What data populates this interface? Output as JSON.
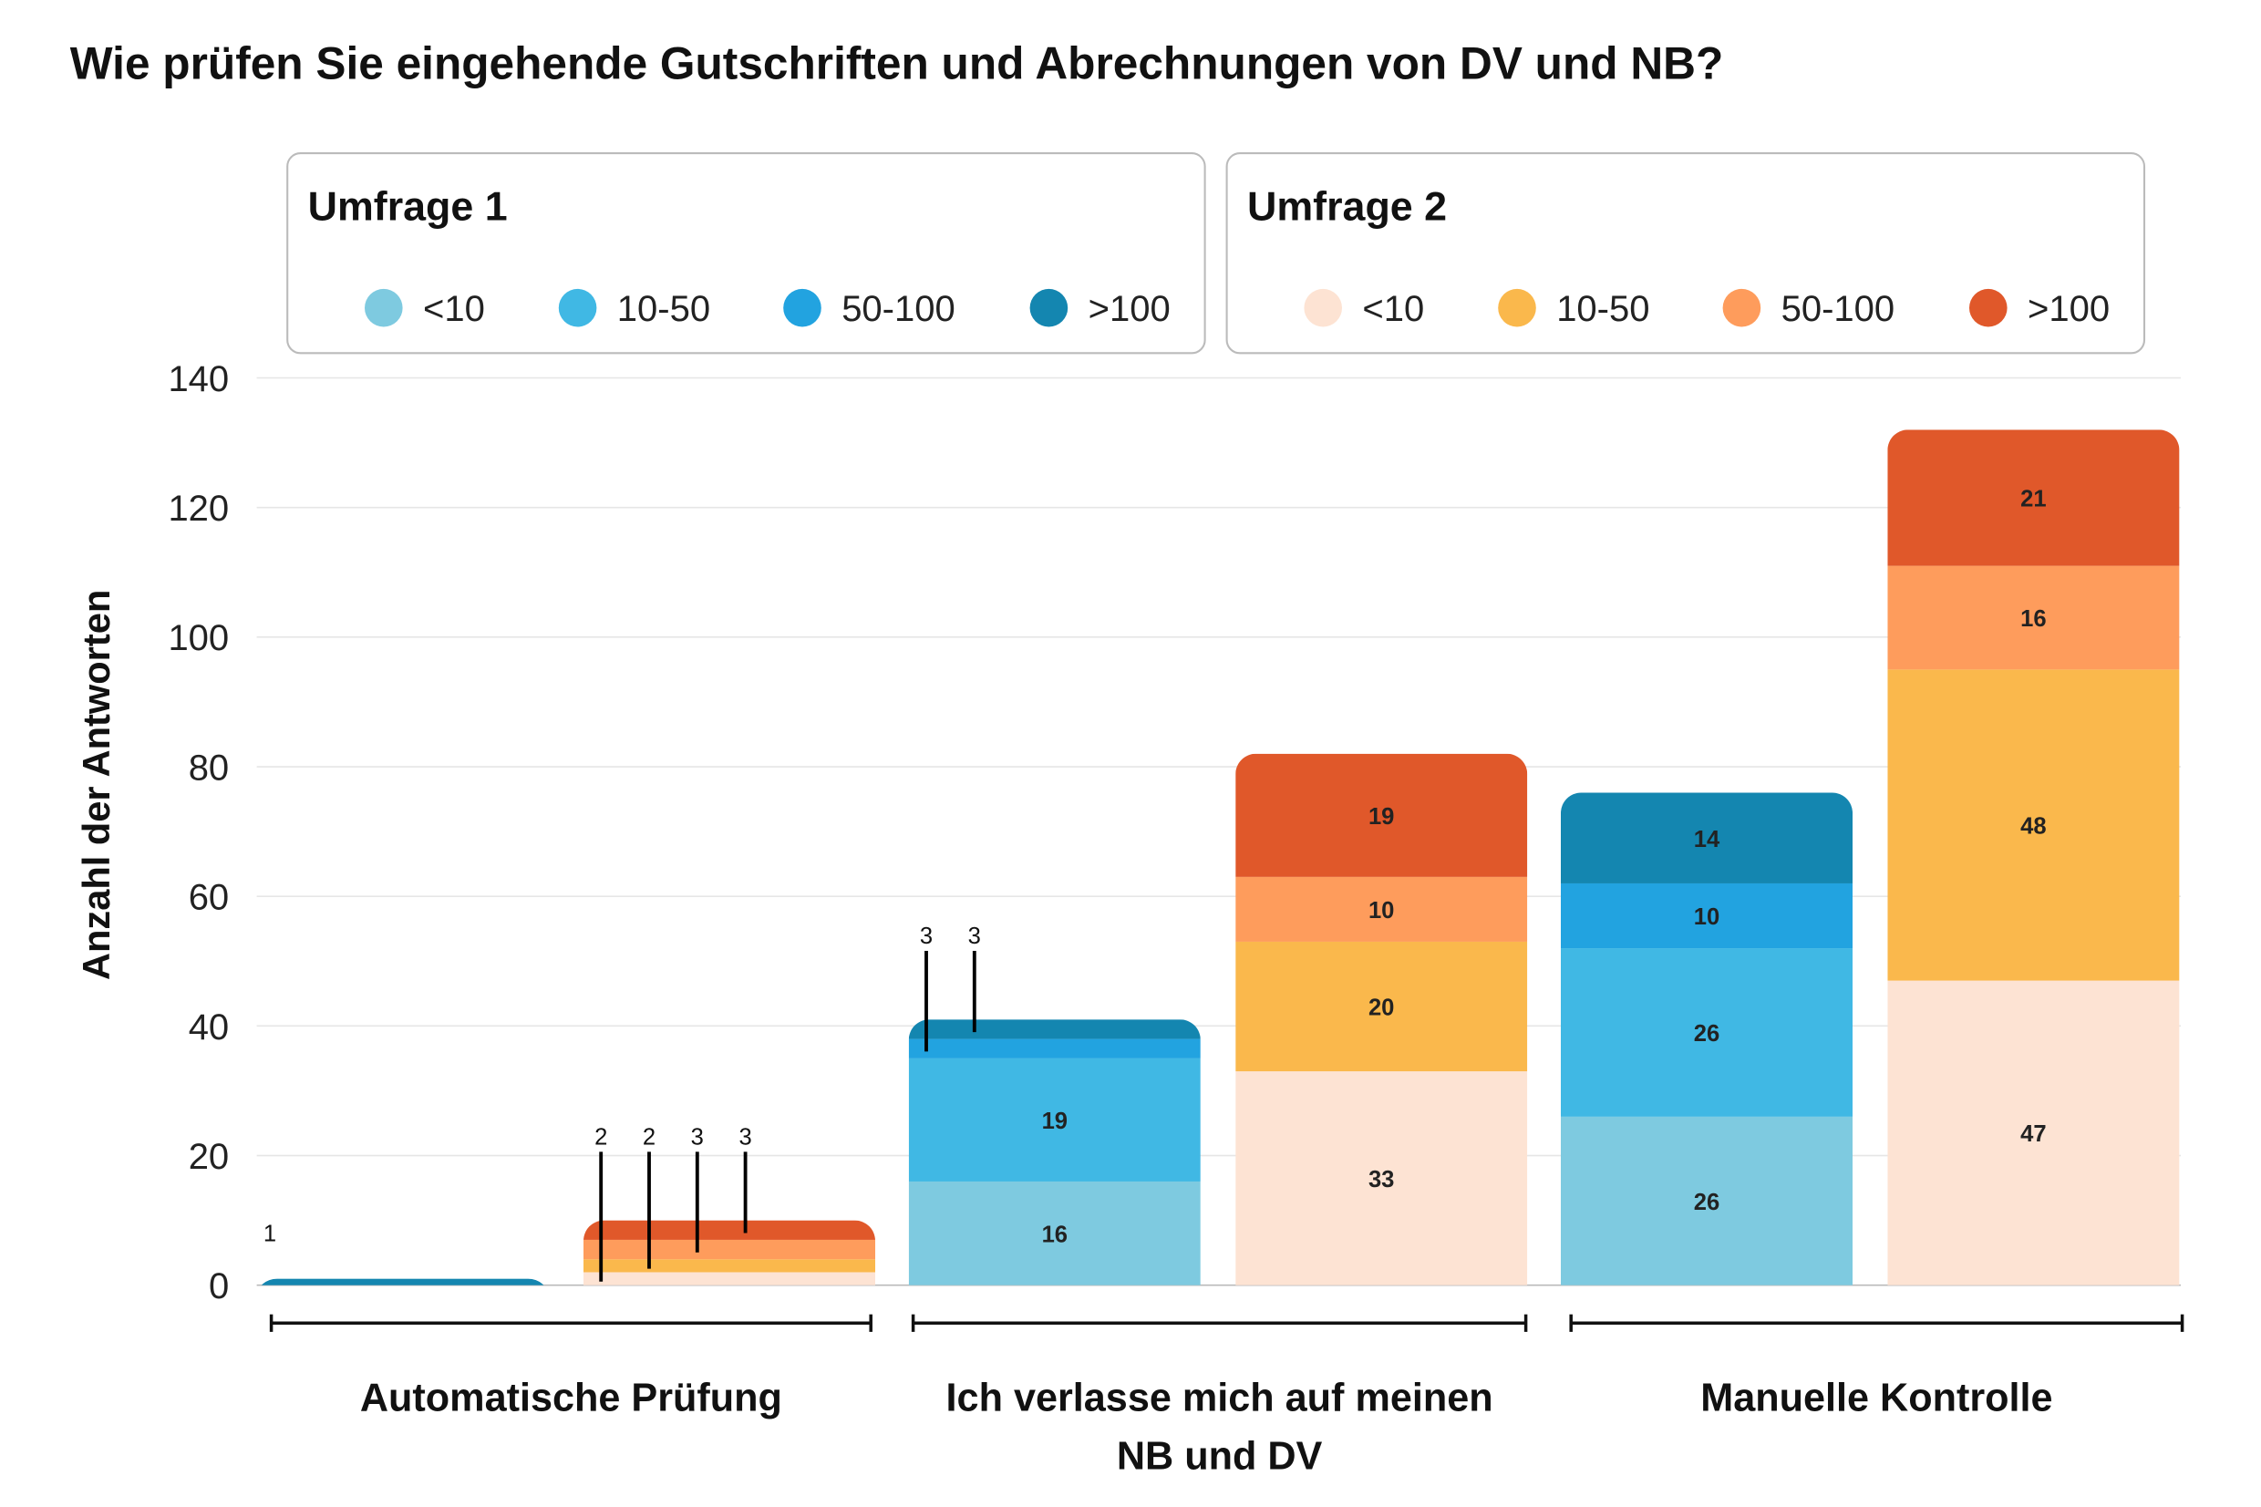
{
  "chart_data": {
    "type": "bar",
    "stacked": true,
    "title": "Wie prüfen Sie eingehende Gutschriften und Abrechnungen von DV und NB?",
    "ylabel": "Anzahl der Antworten",
    "ylim": [
      0,
      140
    ],
    "yticks": [
      0,
      20,
      40,
      60,
      80,
      100,
      120,
      140
    ],
    "grid": true,
    "legend_placement": "top",
    "categories": [
      "Automatische Prüfung",
      "Ich verlasse mich auf meinen NB und DV",
      "Manuelle Kontrolle"
    ],
    "category_lines": [
      [
        "Automatische Prüfung"
      ],
      [
        "Ich verlasse mich auf meinen",
        "NB und DV"
      ],
      [
        "Manuelle Kontrolle"
      ]
    ],
    "groups": [
      {
        "name": "Umfrage 1",
        "series": [
          {
            "name": "<10",
            "color": "#7ecae0",
            "values": [
              0,
              16,
              26
            ]
          },
          {
            "name": "10-50",
            "color": "#40b8e4",
            "values": [
              0,
              19,
              26
            ]
          },
          {
            "name": "50-100",
            "color": "#22a3e0",
            "values": [
              0,
              3,
              10
            ]
          },
          {
            "name": ">100",
            "color": "#1486b0",
            "values": [
              1,
              3,
              14
            ]
          }
        ]
      },
      {
        "name": "Umfrage 2",
        "series": [
          {
            "name": "<10",
            "color": "#fde3d3",
            "values": [
              2,
              33,
              47
            ]
          },
          {
            "name": "10-50",
            "color": "#fab84c",
            "values": [
              2,
              20,
              48
            ]
          },
          {
            "name": "50-100",
            "color": "#fe9c5c",
            "values": [
              3,
              10,
              16
            ]
          },
          {
            "name": ">100",
            "color": "#e0582a",
            "values": [
              3,
              19,
              21
            ]
          }
        ]
      }
    ]
  }
}
